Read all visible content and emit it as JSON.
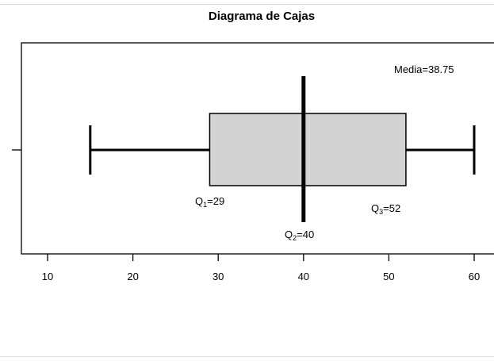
{
  "chart_data": {
    "type": "boxplot",
    "title": "Diagrama de Cajas",
    "xlim": [
      7,
      63
    ],
    "xticks": [
      10,
      20,
      30,
      40,
      50,
      60
    ],
    "box": {
      "min": 15,
      "q1": 29,
      "median": 40,
      "q3": 52,
      "max": 60,
      "mean": 38.75
    },
    "annotations": {
      "mean": "Media=38.75",
      "q1": {
        "letter": "Q",
        "sub": "1",
        "text": "=29"
      },
      "q2": {
        "letter": "Q",
        "sub": "2",
        "text": "=40"
      },
      "q3": {
        "letter": "Q",
        "sub": "3",
        "text": "=52"
      }
    },
    "box_fill": "#d3d3d3",
    "line_color": "#000000",
    "grid": false
  }
}
